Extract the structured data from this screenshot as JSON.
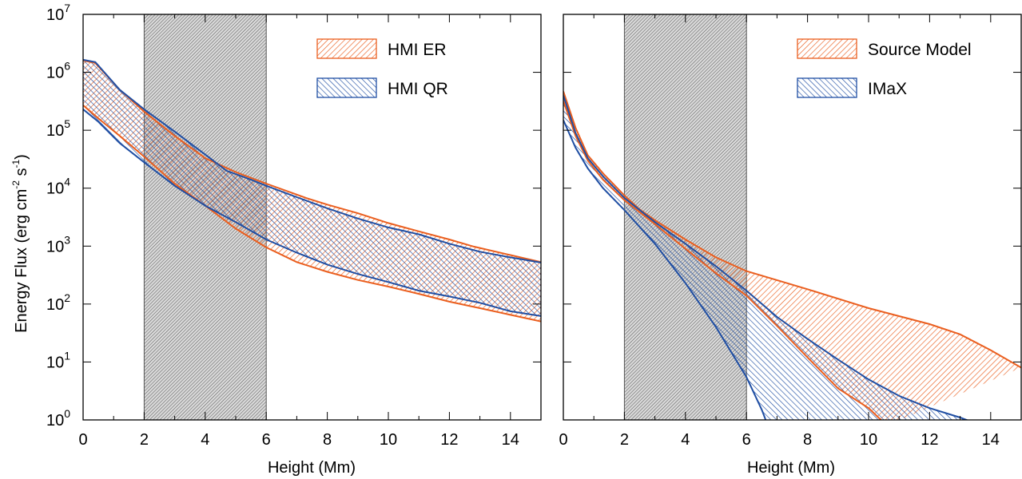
{
  "chart_data": [
    {
      "type": "area",
      "panel": "left",
      "xlabel": "Height (Mm)",
      "ylabel": "Energy Flux (erg cm⁻² s⁻¹)",
      "ylabel_parts": {
        "base": "Energy Flux (erg cm",
        "exp1": "-2",
        "mid": " s",
        "exp2": "-1",
        "end": ")"
      },
      "xlim": [
        0,
        15
      ],
      "ylim": [
        1,
        10000000
      ],
      "yscale": "log",
      "x_ticks": [
        "0",
        "2",
        "4",
        "6",
        "8",
        "10",
        "12",
        "14"
      ],
      "y_ticks": [
        {
          "base": "10",
          "exp": "0"
        },
        {
          "base": "10",
          "exp": "1"
        },
        {
          "base": "10",
          "exp": "2"
        },
        {
          "base": "10",
          "exp": "3"
        },
        {
          "base": "10",
          "exp": "4"
        },
        {
          "base": "10",
          "exp": "5"
        },
        {
          "base": "10",
          "exp": "6"
        },
        {
          "base": "10",
          "exp": "7"
        }
      ],
      "shaded_region": [
        2,
        6
      ],
      "legend_position": "top-right",
      "series": [
        {
          "name": "HMI ER",
          "color": "#ea5e1e",
          "hatch": "forward",
          "upper": [
            [
              0,
              1600000
            ],
            [
              0.4,
              1450000
            ],
            [
              1.2,
              500000
            ],
            [
              2,
              210000
            ],
            [
              3,
              80000
            ],
            [
              4,
              33000
            ],
            [
              5,
              19000
            ],
            [
              6,
              12000
            ],
            [
              7.3,
              6800
            ],
            [
              8,
              5200
            ],
            [
              9,
              3700
            ],
            [
              10,
              2500
            ],
            [
              11,
              1800
            ],
            [
              12,
              1300
            ],
            [
              12.8,
              980
            ],
            [
              14,
              700
            ],
            [
              15,
              530
            ]
          ],
          "lower": [
            [
              0,
              270000
            ],
            [
              0.5,
              160000
            ],
            [
              1.2,
              80000
            ],
            [
              2,
              35000
            ],
            [
              3,
              12000
            ],
            [
              4,
              5000
            ],
            [
              5,
              2000
            ],
            [
              6,
              950
            ],
            [
              7,
              530
            ],
            [
              8,
              360
            ],
            [
              9,
              260
            ],
            [
              10,
              200
            ],
            [
              11,
              150
            ],
            [
              12,
              110
            ],
            [
              13,
              85
            ],
            [
              14,
              65
            ],
            [
              15,
              50
            ]
          ]
        },
        {
          "name": "HMI QR",
          "color": "#1f4ea3",
          "hatch": "back",
          "upper": [
            [
              0,
              1650000
            ],
            [
              0.4,
              1500000
            ],
            [
              1.2,
              500000
            ],
            [
              2,
              230000
            ],
            [
              3,
              95000
            ],
            [
              4,
              38000
            ],
            [
              4.7,
              20000
            ],
            [
              5.5,
              14000
            ],
            [
              6,
              11000
            ],
            [
              7,
              7000
            ],
            [
              8,
              4500
            ],
            [
              9,
              3000
            ],
            [
              10,
              2100
            ],
            [
              11,
              1600
            ],
            [
              12,
              1100
            ],
            [
              13,
              800
            ],
            [
              14,
              640
            ],
            [
              15,
              520
            ]
          ],
          "lower": [
            [
              0,
              230000
            ],
            [
              0.5,
              140000
            ],
            [
              1.2,
              60000
            ],
            [
              2,
              28000
            ],
            [
              3,
              11000
            ],
            [
              4,
              5000
            ],
            [
              5,
              2600
            ],
            [
              6,
              1300
            ],
            [
              7,
              770
            ],
            [
              8,
              480
            ],
            [
              9,
              330
            ],
            [
              10,
              240
            ],
            [
              11,
              170
            ],
            [
              12,
              135
            ],
            [
              13,
              105
            ],
            [
              14,
              75
            ],
            [
              15,
              62
            ]
          ]
        }
      ]
    },
    {
      "type": "area",
      "panel": "right",
      "xlabel": "Height (Mm)",
      "xlim": [
        0,
        15
      ],
      "ylim": [
        1,
        10000000
      ],
      "yscale": "log",
      "x_ticks": [
        "0",
        "2",
        "4",
        "6",
        "8",
        "10",
        "12",
        "14"
      ],
      "shaded_region": [
        2,
        6
      ],
      "legend_position": "top-right",
      "series": [
        {
          "name": "Source Model",
          "color": "#ea5e1e",
          "hatch": "forward",
          "upper": [
            [
              0,
              470000
            ],
            [
              0.4,
              110000
            ],
            [
              0.8,
              37000
            ],
            [
              1.3,
              18000
            ],
            [
              2,
              7500
            ],
            [
              2.5,
              4300
            ],
            [
              3,
              2800
            ],
            [
              4,
              1300
            ],
            [
              5,
              640
            ],
            [
              6,
              370
            ],
            [
              8,
              180
            ],
            [
              10,
              85
            ],
            [
              12,
              45
            ],
            [
              13,
              30
            ],
            [
              14,
              16
            ],
            [
              15,
              8
            ]
          ],
          "lower": [
            [
              0,
              320000
            ],
            [
              0.4,
              80000
            ],
            [
              0.8,
              30000
            ],
            [
              1.3,
              14000
            ],
            [
              2,
              6200
            ],
            [
              3,
              2400
            ],
            [
              4,
              900
            ],
            [
              5,
              340
            ],
            [
              6,
              140
            ],
            [
              7,
              42
            ],
            [
              8,
              12
            ],
            [
              9,
              3.5
            ],
            [
              10,
              1.6
            ],
            [
              10.6,
              0.8
            ]
          ]
        },
        {
          "name": "IMaX",
          "color": "#1f4ea3",
          "hatch": "back",
          "upper": [
            [
              0,
              400000
            ],
            [
              0.4,
              90000
            ],
            [
              0.8,
              33000
            ],
            [
              1.3,
              16000
            ],
            [
              2,
              6800
            ],
            [
              3,
              2600
            ],
            [
              4,
              1100
            ],
            [
              5,
              450
            ],
            [
              6,
              170
            ],
            [
              7,
              60
            ],
            [
              8,
              25
            ],
            [
              9,
              11
            ],
            [
              10,
              5
            ],
            [
              11,
              2.6
            ],
            [
              12,
              1.6
            ],
            [
              13,
              1.1
            ],
            [
              13.7,
              0.8
            ]
          ],
          "lower": [
            [
              0,
              150000
            ],
            [
              0.4,
              50000
            ],
            [
              0.8,
              22000
            ],
            [
              1.3,
              10000
            ],
            [
              2,
              4200
            ],
            [
              3,
              1100
            ],
            [
              4,
              230
            ],
            [
              5,
              40
            ],
            [
              6,
              5.5
            ],
            [
              6.5,
              1.5
            ],
            [
              6.7,
              0.8
            ]
          ]
        }
      ]
    }
  ]
}
